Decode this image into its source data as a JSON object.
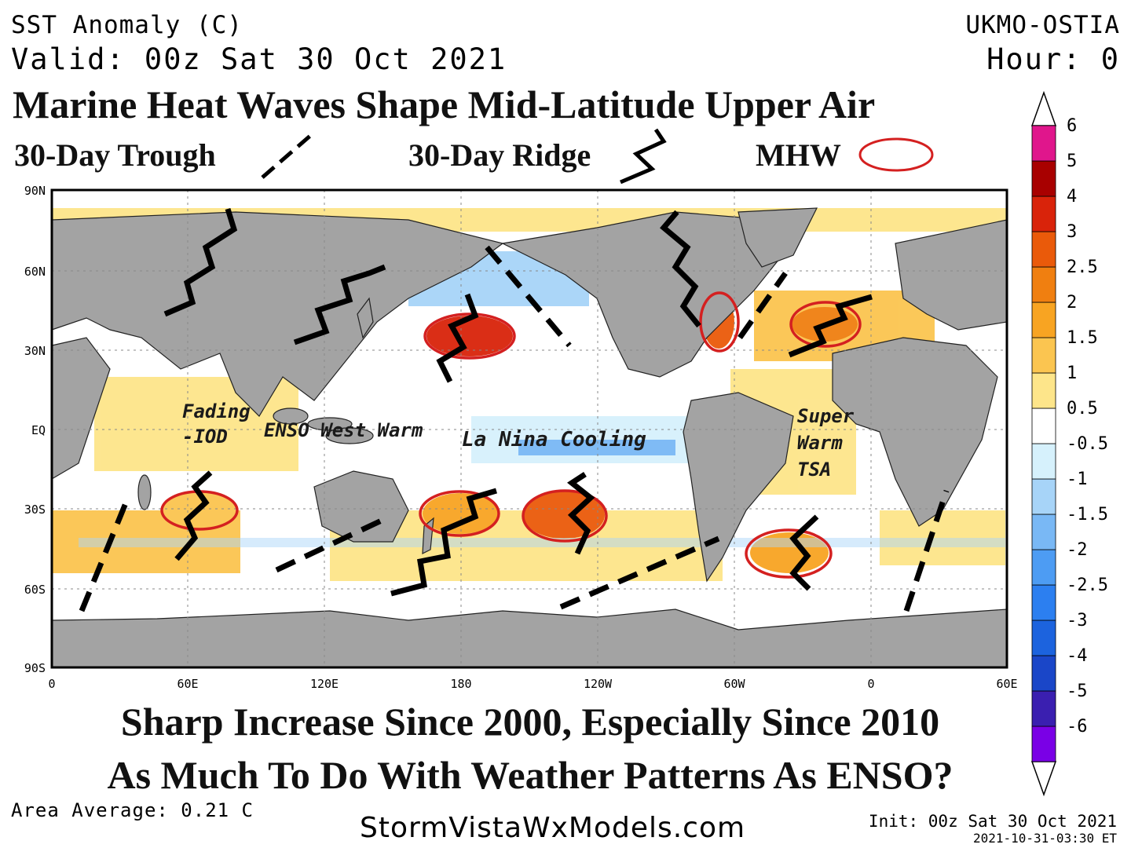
{
  "header": {
    "product": "SST Anomaly (C)",
    "valid": "Valid: 00z Sat 30 Oct 2021",
    "source": "UKMO-OSTIA",
    "hour": "Hour: 0"
  },
  "title": "Marine Heat Waves Shape Mid-Latitude Upper Air",
  "legend_keys": {
    "trough": "30-Day Trough",
    "ridge": "30-Day Ridge",
    "mhw": "MHW"
  },
  "map": {
    "lat_labels": [
      "90N",
      "60N",
      "30N",
      "EQ",
      "30S",
      "60S",
      "90S"
    ],
    "lon_labels": [
      "0",
      "60E",
      "120E",
      "180",
      "120W",
      "60W",
      "0",
      "60E"
    ],
    "annotations": {
      "iod_line1": "Fading",
      "iod_line2": "-IOD",
      "enso_west": "ENSO West Warm",
      "la_nina": "La Nina Cooling",
      "tsa_line1": "Super",
      "tsa_line2": "Warm",
      "tsa_line3": "TSA"
    },
    "colors": {
      "land": "#a3a3a3",
      "ocean_neutral": "#ffffff",
      "ridge": "#000000",
      "trough": "#000000",
      "mhw_ellipse": "#d42020"
    }
  },
  "colorbar": {
    "labels": [
      "6",
      "5",
      "4",
      "3",
      "2.5",
      "2",
      "1.5",
      "1",
      "0.5",
      "-0.5",
      "-1",
      "-1.5",
      "-2",
      "-2.5",
      "-3",
      "-4",
      "-5",
      "-6"
    ],
    "colors": [
      "#7a00e6",
      "#3a1fb0",
      "#1a46c8",
      "#1c63de",
      "#2c7ff0",
      "#4d9cf3",
      "#79b8f5",
      "#a7d4f8",
      "#d6f1fc",
      "#ffffff",
      "#fde58a",
      "#fbc550",
      "#f8a422",
      "#f07f10",
      "#ea5a0a",
      "#d9230a",
      "#a80000",
      "#e0168c"
    ]
  },
  "bottom": {
    "line1": "Sharp Increase Since 2000, Especially Since 2010",
    "line2": "As Much To Do With Weather Patterns As ENSO?",
    "area_average": "Area Average: 0.21 C",
    "website": "StormVistaWxModels.com",
    "init": "Init: 00z Sat 30 Oct 2021",
    "generated": "2021-10-31-03:30 ET"
  }
}
